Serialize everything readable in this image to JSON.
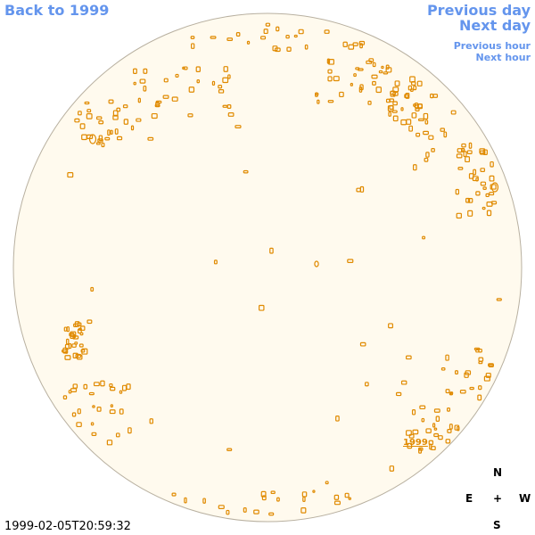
{
  "nav": {
    "back": "Back to 1999",
    "previous_day": "Previous day",
    "next_day": "Next day",
    "previous_hour": "Previous hour",
    "next_hour": "Next hour"
  },
  "disk_label": "1999",
  "compass": {
    "north": "N",
    "east": "E",
    "center": "+",
    "west": "W",
    "south": "S"
  },
  "timestamp": "1999-02-05T20:59:32"
}
